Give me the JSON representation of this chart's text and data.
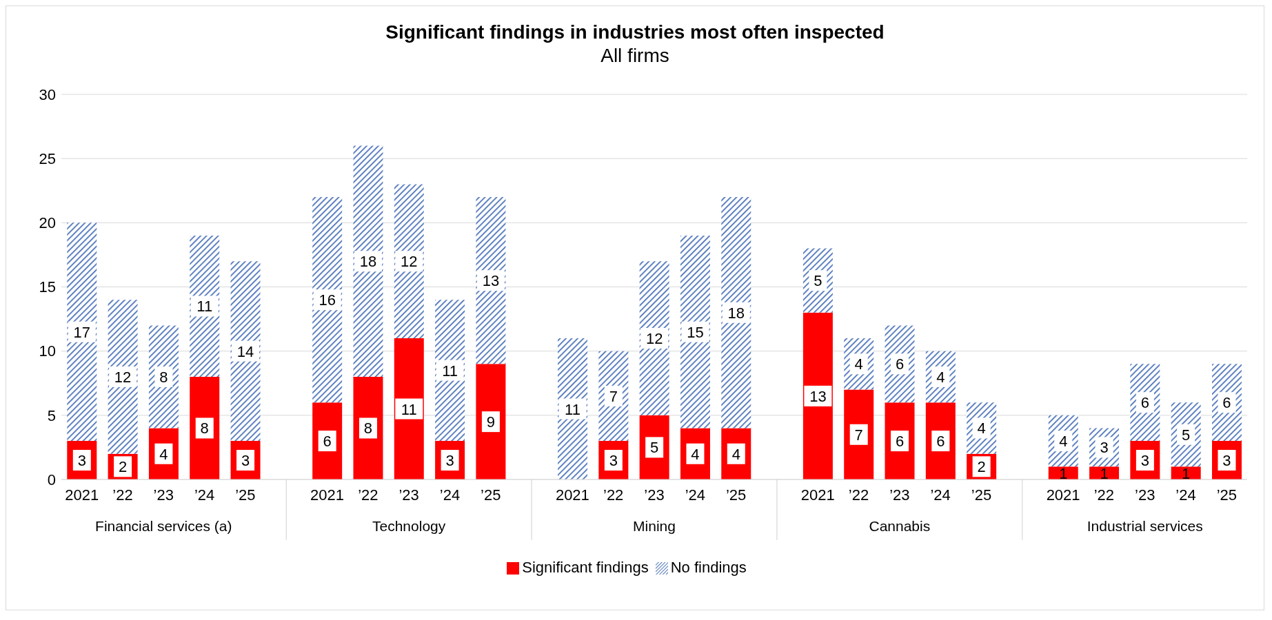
{
  "chart_data": {
    "type": "bar",
    "title": "Significant findings in industries most often inspected",
    "subtitle": "All firms",
    "categories": [
      "2021",
      "’22",
      "’23",
      "’24",
      "’25",
      null,
      "2021",
      "’22",
      "’23",
      "’24",
      "’25",
      null,
      "2021",
      "’22",
      "’23",
      "’24",
      "’25",
      null,
      "2021",
      "’22",
      "’23",
      "’24",
      "’25",
      null,
      "2021",
      "’22",
      "’23",
      "’24",
      "’25"
    ],
    "annotations": [
      "Financial services (a)",
      "Technology",
      "Mining",
      "Cannabis",
      "Industrial services"
    ],
    "stacked": true,
    "series": [
      {
        "name": "Significant findings",
        "color": "#ff0000",
        "values": [
          3,
          2,
          4,
          8,
          3,
          null,
          6,
          8,
          11,
          3,
          9,
          null,
          null,
          3,
          5,
          4,
          4,
          null,
          13,
          7,
          6,
          6,
          2,
          null,
          1,
          1,
          3,
          1,
          3
        ]
      },
      {
        "name": "No findings",
        "color": "#4a72b8",
        "values": [
          17,
          12,
          8,
          11,
          14,
          null,
          16,
          18,
          12,
          11,
          13,
          null,
          11,
          7,
          12,
          15,
          18,
          null,
          5,
          4,
          6,
          4,
          4,
          null,
          4,
          3,
          6,
          5,
          6
        ]
      }
    ],
    "ylim": [
      0,
      30
    ],
    "yticks": [
      0,
      5,
      10,
      15,
      20,
      25,
      30
    ],
    "grid": "y",
    "legend": "bottom",
    "data_labels": true
  }
}
